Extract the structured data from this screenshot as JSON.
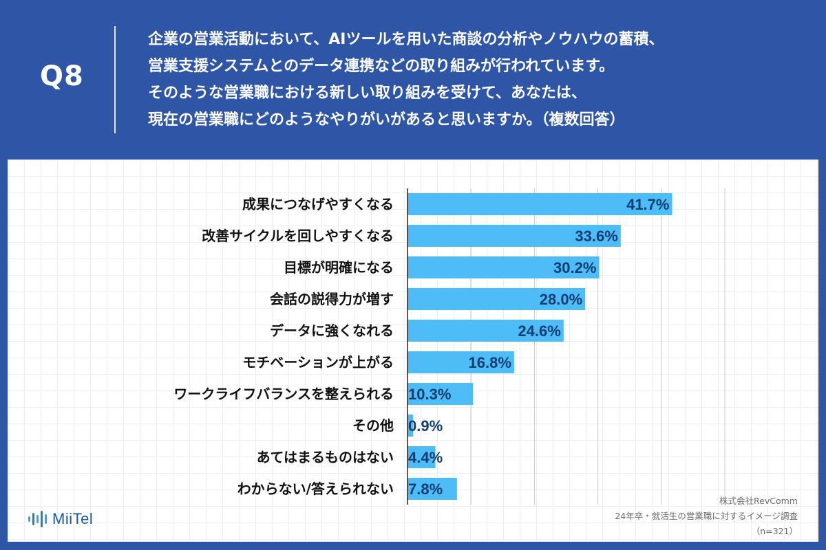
{
  "header": {
    "question_number": "Q8",
    "question_lines": [
      "企業の営業活動において、AIツールを用いた商談の分析やノウハウの蓄積、",
      "営業支援システムとのデータ連携などの取り組みが行われています。",
      "そのような営業職における新しい取り組みを受けて、あなたは、",
      "現在の営業職にどのようなやりがいがあると思いますか。（複数回答）"
    ]
  },
  "colors": {
    "background": "#2f56a6",
    "bar": "#4dbcf7",
    "value_label": "#0f3e73",
    "category_label": "#111111",
    "gridline": "#c8c8c8"
  },
  "chart_data": {
    "type": "bar",
    "orientation": "horizontal",
    "categories": [
      "成果につなげやすくなる",
      "改善サイクルを回しやすくなる",
      "目標が明確になる",
      "会話の説得力が増す",
      "データに強くなれる",
      "モチベーションが上がる",
      "ワークライフバランスを整えられる",
      "その他",
      "あてはまるものはない",
      "わからない/答えられない"
    ],
    "values": [
      41.7,
      33.6,
      30.2,
      28.0,
      24.6,
      16.8,
      10.3,
      0.9,
      4.4,
      7.8
    ],
    "value_labels": [
      "41.7%",
      "33.6%",
      "30.2%",
      "28.0%",
      "24.6%",
      "16.8%",
      "10.3%",
      "0.9%",
      "4.4%",
      "7.8%"
    ],
    "xlim": [
      0,
      50
    ],
    "grid": true,
    "title": "",
    "xlabel": "",
    "ylabel": ""
  },
  "footer": {
    "company": "株式会社RevComm",
    "survey": "24年卒・就活生の営業職に対するイメージ調査",
    "sample": "（n=321）"
  },
  "logo": {
    "text": "MiiTel",
    "icon": "audio-wave-icon"
  }
}
